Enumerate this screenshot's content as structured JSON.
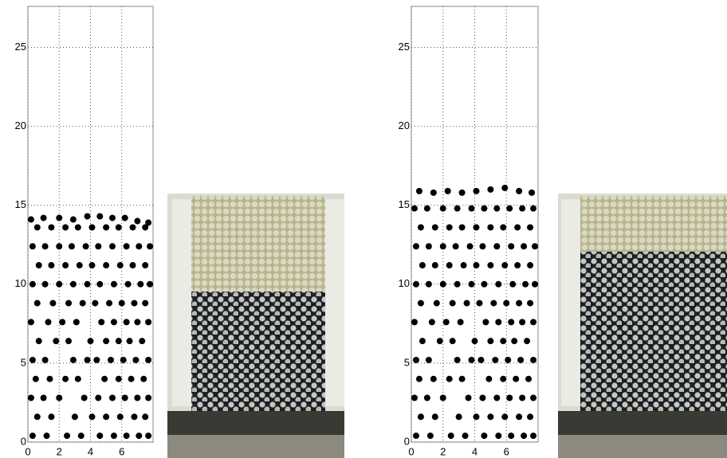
{
  "chart_data": [
    {
      "type": "scatter",
      "xlim": [
        0,
        8
      ],
      "ylim": [
        0,
        27.6
      ],
      "xticks": [
        0,
        2,
        4,
        6
      ],
      "yticks": [
        0,
        5,
        10,
        15,
        20,
        25
      ],
      "grid": true,
      "series": [
        {
          "color": "#000000",
          "x": [
            0.3,
            1.2,
            2.5,
            3.4,
            4.6,
            5.5,
            6.3,
            7.1,
            7.7,
            0.6,
            1.5,
            3.0,
            4.1,
            5.0,
            5.9,
            6.8,
            7.5,
            0.2,
            1.0,
            2.0,
            3.6,
            4.5,
            5.4,
            6.2,
            7.0,
            7.7,
            0.5,
            1.4,
            2.4,
            3.2,
            4.9,
            5.8,
            6.6,
            7.4,
            0.3,
            1.1,
            2.9,
            3.8,
            4.4,
            5.3,
            6.1,
            6.9,
            7.7,
            0.7,
            1.8,
            2.6,
            4.0,
            5.0,
            5.8,
            6.5,
            7.3,
            0.2,
            1.3,
            2.2,
            3.1,
            4.7,
            5.5,
            6.3,
            7.0,
            7.7,
            0.6,
            1.6,
            2.6,
            3.5,
            4.3,
            5.2,
            6.0,
            6.8,
            7.5,
            0.3,
            1.1,
            2.0,
            2.9,
            3.8,
            4.6,
            5.5,
            6.4,
            7.2,
            7.8,
            0.7,
            1.5,
            2.4,
            3.3,
            4.1,
            5.0,
            5.9,
            6.7,
            7.5,
            0.3,
            1.1,
            2.0,
            2.8,
            3.7,
            4.5,
            5.4,
            6.3,
            7.1,
            7.8,
            0.6,
            1.5,
            2.4,
            3.2,
            4.1,
            5.0,
            5.8,
            6.7,
            7.5,
            0.2,
            1.0,
            2.0,
            2.9,
            3.8,
            4.6,
            5.4,
            6.2,
            7.0,
            7.7
          ],
          "y": [
            0.4,
            0.4,
            0.4,
            0.4,
            0.4,
            0.4,
            0.4,
            0.4,
            0.4,
            1.6,
            1.6,
            1.6,
            1.6,
            1.6,
            1.6,
            1.6,
            1.6,
            2.8,
            2.8,
            2.8,
            2.8,
            2.8,
            2.8,
            2.8,
            2.8,
            2.8,
            4.0,
            4.0,
            4.0,
            4.0,
            4.0,
            4.0,
            4.0,
            4.0,
            5.2,
            5.2,
            5.2,
            5.2,
            5.2,
            5.2,
            5.2,
            5.2,
            5.2,
            6.4,
            6.4,
            6.4,
            6.4,
            6.4,
            6.4,
            6.4,
            6.4,
            7.6,
            7.6,
            7.6,
            7.6,
            7.6,
            7.6,
            7.6,
            7.6,
            7.6,
            8.8,
            8.8,
            8.8,
            8.8,
            8.8,
            8.8,
            8.8,
            8.8,
            8.8,
            10.0,
            10.0,
            10.0,
            10.0,
            10.0,
            10.0,
            10.0,
            10.0,
            10.0,
            10.0,
            11.2,
            11.2,
            11.2,
            11.2,
            11.2,
            11.2,
            11.2,
            11.2,
            11.2,
            12.4,
            12.4,
            12.4,
            12.4,
            12.4,
            12.4,
            12.4,
            12.4,
            12.4,
            12.4,
            13.6,
            13.6,
            13.6,
            13.6,
            13.6,
            13.6,
            13.6,
            13.6,
            13.6,
            14.1,
            14.2,
            14.2,
            14.1,
            14.3,
            14.3,
            14.2,
            14.2,
            14.0,
            13.9
          ]
        }
      ]
    },
    {
      "type": "scatter",
      "xlim": [
        0,
        8
      ],
      "ylim": [
        0,
        27.6
      ],
      "xticks": [
        0,
        2,
        4,
        6
      ],
      "yticks": [
        0,
        5,
        10,
        15,
        20,
        25
      ],
      "grid": true,
      "series": [
        {
          "color": "#000000",
          "x": [
            0.3,
            1.2,
            2.5,
            3.4,
            4.6,
            5.5,
            6.3,
            7.1,
            7.7,
            0.6,
            1.5,
            3.0,
            4.1,
            5.0,
            5.9,
            6.8,
            7.5,
            0.2,
            1.0,
            2.0,
            3.6,
            4.5,
            5.4,
            6.2,
            7.0,
            7.7,
            0.5,
            1.4,
            2.4,
            3.2,
            4.9,
            5.8,
            6.6,
            7.4,
            0.3,
            1.1,
            2.9,
            3.8,
            4.4,
            5.3,
            6.1,
            6.9,
            7.7,
            0.7,
            1.8,
            2.6,
            4.0,
            5.0,
            5.8,
            6.5,
            7.3,
            0.2,
            1.3,
            2.2,
            3.1,
            4.7,
            5.5,
            6.3,
            7.0,
            7.7,
            0.6,
            1.6,
            2.6,
            3.5,
            4.3,
            5.2,
            6.0,
            6.8,
            7.5,
            0.3,
            1.1,
            2.0,
            2.9,
            3.8,
            4.6,
            5.5,
            6.4,
            7.2,
            7.8,
            0.7,
            1.5,
            2.4,
            3.3,
            4.1,
            5.0,
            5.9,
            6.7,
            7.5,
            0.3,
            1.1,
            2.0,
            2.8,
            3.7,
            4.5,
            5.4,
            6.3,
            7.1,
            7.8,
            0.6,
            1.5,
            2.4,
            3.2,
            4.1,
            5.0,
            5.8,
            6.7,
            7.5,
            0.2,
            1.0,
            2.0,
            2.9,
            3.8,
            4.6,
            5.4,
            6.2,
            7.0,
            7.7,
            0.5,
            1.4,
            2.3,
            3.2,
            4.1,
            5.0,
            5.9,
            6.8,
            7.6
          ],
          "y": [
            0.4,
            0.4,
            0.4,
            0.4,
            0.4,
            0.4,
            0.4,
            0.4,
            0.4,
            1.6,
            1.6,
            1.6,
            1.6,
            1.6,
            1.6,
            1.6,
            1.6,
            2.8,
            2.8,
            2.8,
            2.8,
            2.8,
            2.8,
            2.8,
            2.8,
            2.8,
            4.0,
            4.0,
            4.0,
            4.0,
            4.0,
            4.0,
            4.0,
            4.0,
            5.2,
            5.2,
            5.2,
            5.2,
            5.2,
            5.2,
            5.2,
            5.2,
            5.2,
            6.4,
            6.4,
            6.4,
            6.4,
            6.4,
            6.4,
            6.4,
            6.4,
            7.6,
            7.6,
            7.6,
            7.6,
            7.6,
            7.6,
            7.6,
            7.6,
            7.6,
            8.8,
            8.8,
            8.8,
            8.8,
            8.8,
            8.8,
            8.8,
            8.8,
            8.8,
            10.0,
            10.0,
            10.0,
            10.0,
            10.0,
            10.0,
            10.0,
            10.0,
            10.0,
            10.0,
            11.2,
            11.2,
            11.2,
            11.2,
            11.2,
            11.2,
            11.2,
            11.2,
            11.2,
            12.4,
            12.4,
            12.4,
            12.4,
            12.4,
            12.4,
            12.4,
            12.4,
            12.4,
            12.4,
            13.6,
            13.6,
            13.6,
            13.6,
            13.6,
            13.6,
            13.6,
            13.6,
            13.6,
            14.8,
            14.8,
            14.8,
            14.8,
            14.8,
            14.8,
            14.8,
            14.8,
            14.8,
            14.8,
            15.9,
            15.8,
            15.9,
            15.8,
            15.9,
            16.0,
            16.1,
            15.9,
            15.8
          ]
        }
      ]
    }
  ]
}
